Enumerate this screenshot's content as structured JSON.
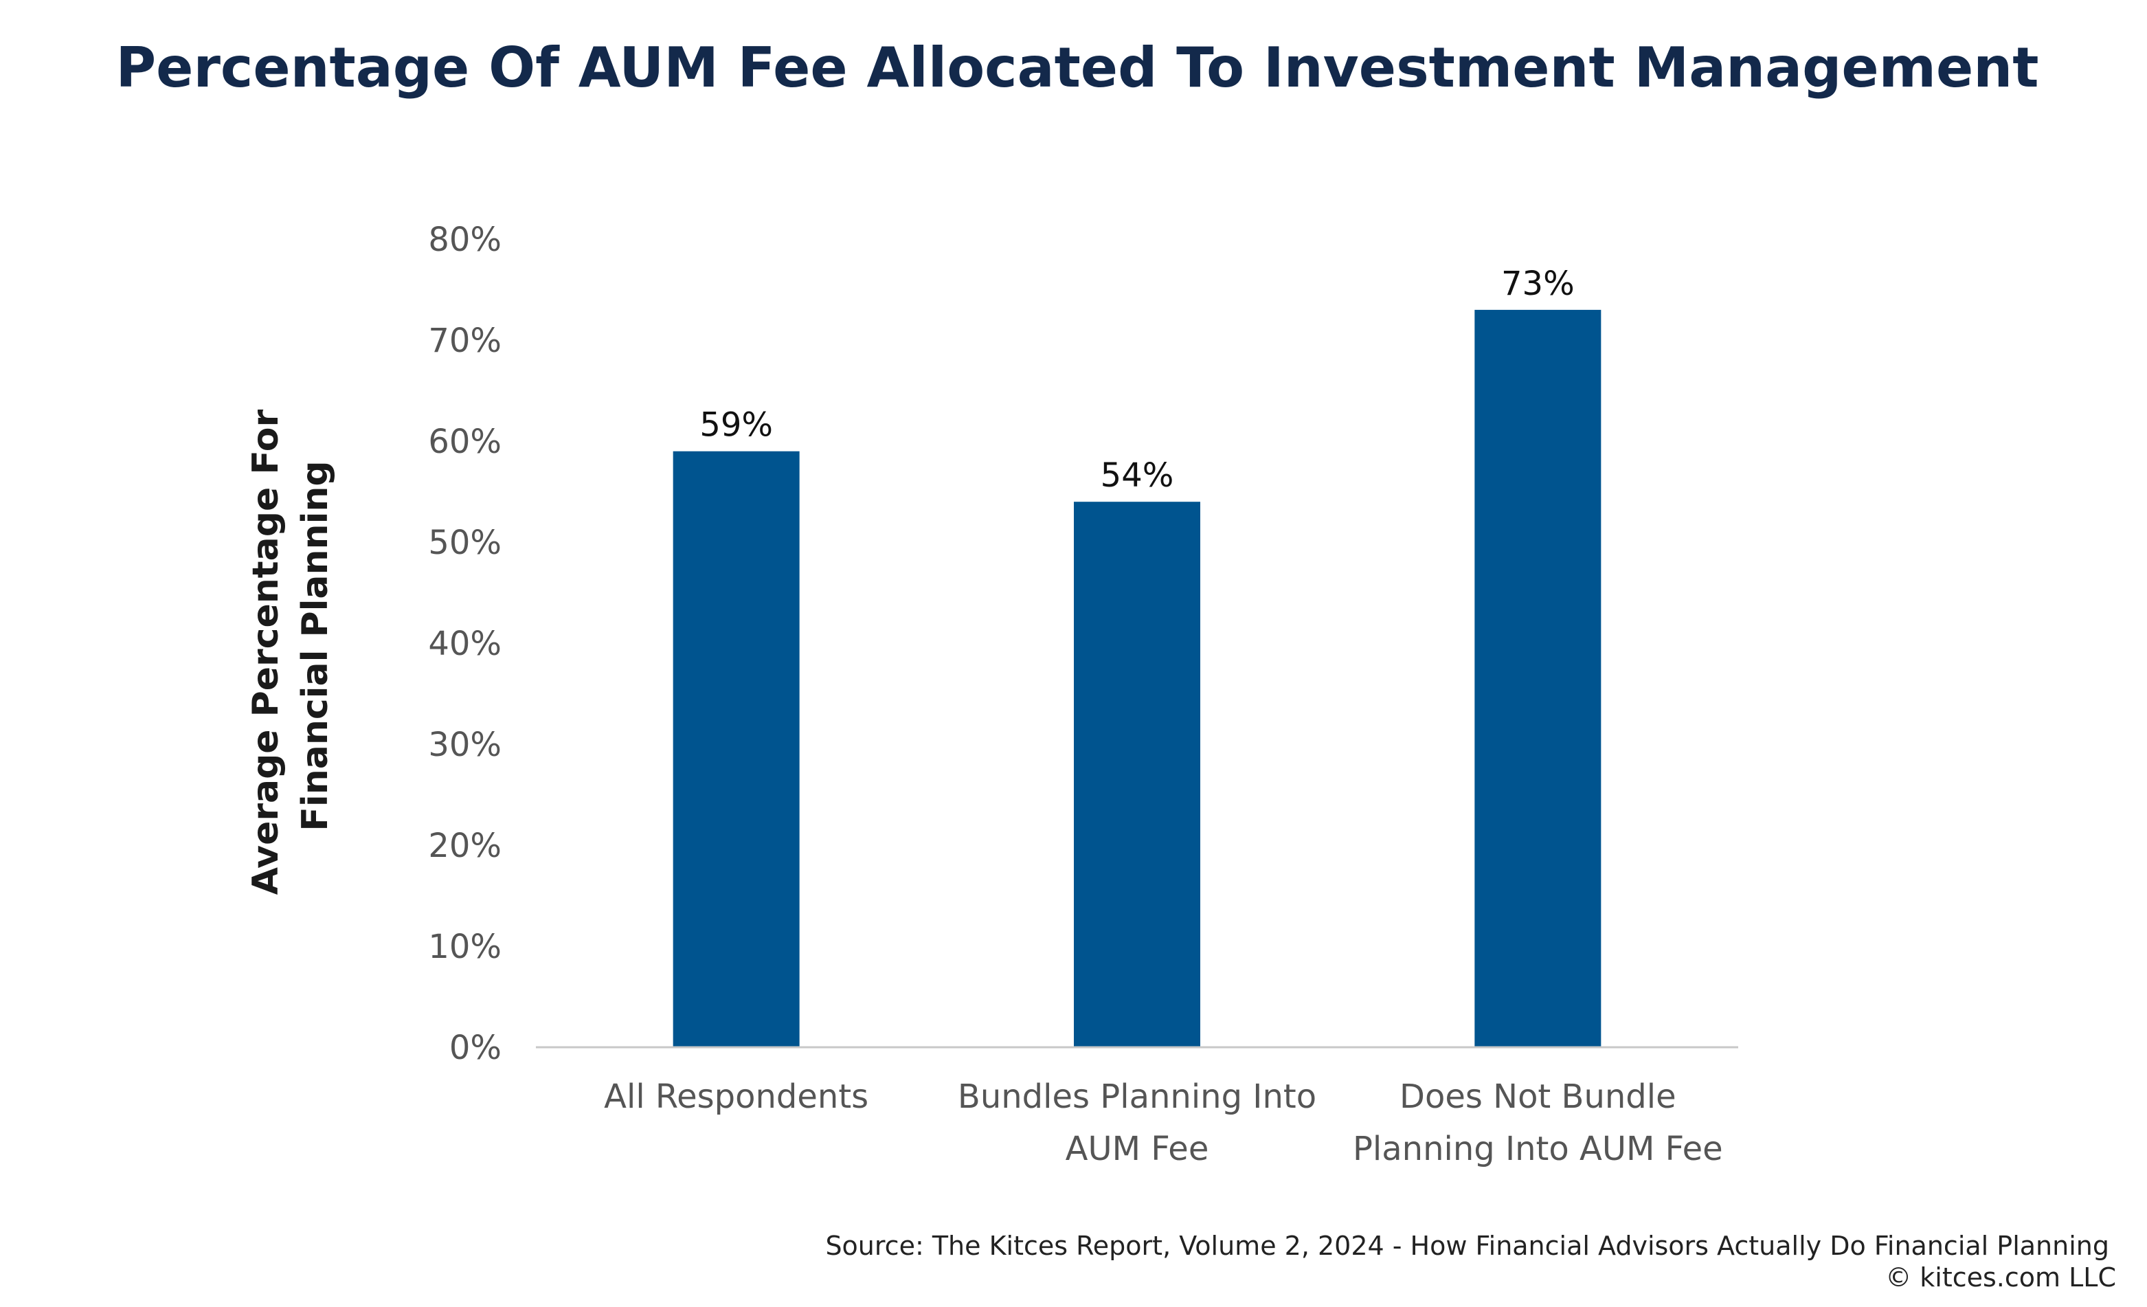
{
  "chart_data": {
    "type": "bar",
    "title": "Percentage Of AUM Fee Allocated To Investment Management",
    "ylabel": [
      "Average Percentage For",
      "Financial Planning"
    ],
    "xlabel": "",
    "categories": [
      [
        "All Respondents"
      ],
      [
        "Bundles Planning Into",
        "AUM Fee"
      ],
      [
        "Does Not Bundle",
        "Planning Into AUM Fee"
      ]
    ],
    "values": [
      59,
      54,
      73
    ],
    "data_labels": [
      "59%",
      "54%",
      "73%"
    ],
    "ylim": [
      0,
      80
    ],
    "y_ticks": [
      0,
      10,
      20,
      30,
      40,
      50,
      60,
      70,
      80
    ],
    "y_tick_labels": [
      "0%",
      "10%",
      "20%",
      "30%",
      "40%",
      "50%",
      "60%",
      "70%",
      "80%"
    ],
    "grid": false,
    "legend": "none",
    "bar_color": "#00548f",
    "axis_color": "#c8c8c8"
  },
  "footer": {
    "source": "Source: The Kitces Report, Volume 2, 2024 - How Financial Advisors Actually Do Financial Planning",
    "copyright": "© kitces.com LLC"
  }
}
